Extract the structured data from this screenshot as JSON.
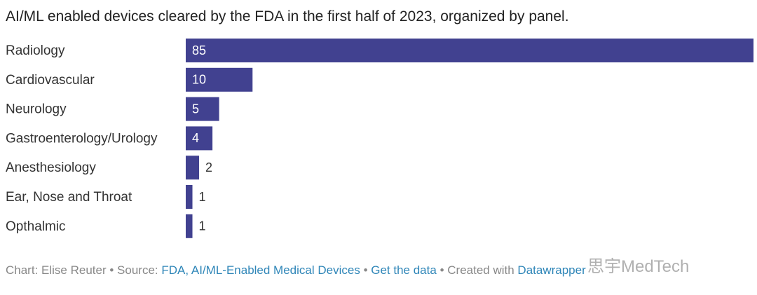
{
  "chart_data": {
    "type": "bar",
    "orientation": "horizontal",
    "title": "AI/ML enabled devices cleared by the FDA in the first half of 2023, organized by panel.",
    "categories": [
      "Radiology",
      "Cardiovascular",
      "Neurology",
      "Gastroenterology/Urology",
      "Anesthesiology",
      "Ear, Nose and Throat",
      "Opthalmic"
    ],
    "values": [
      85,
      10,
      5,
      4,
      2,
      1,
      1
    ],
    "color": "#414190"
  },
  "footer": {
    "chart": "Chart: Elise Reuter",
    "separator": "•",
    "source_label": "Source:",
    "source_link": "FDA, AI/ML-Enabled Medical Devices",
    "data_link": "Get the data",
    "created": "Created with",
    "tool_link": "Datawrapper"
  },
  "watermark": "思宇MedTech"
}
